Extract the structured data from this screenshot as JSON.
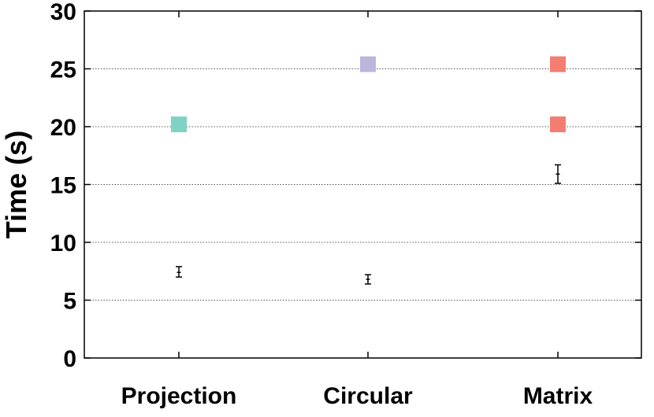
{
  "chart_data": {
    "type": "scatter",
    "title": "",
    "xlabel": "",
    "ylabel": "Time (s)",
    "categories": [
      "Projection",
      "Circular",
      "Matrix"
    ],
    "ylim": [
      0,
      30
    ],
    "yticks": [
      0,
      5,
      10,
      15,
      20,
      25,
      30
    ],
    "grid": {
      "y": true,
      "x": false,
      "style": "dotted"
    },
    "error_points": [
      {
        "category": "Projection",
        "mean": 7.4,
        "low": 7.0,
        "high": 7.9
      },
      {
        "category": "Circular",
        "mean": 6.8,
        "low": 6.4,
        "high": 7.2
      },
      {
        "category": "Matrix",
        "mean": 15.9,
        "low": 15.1,
        "high": 16.7
      }
    ],
    "markers": [
      {
        "category": "Projection",
        "value": 20.2,
        "color": "#7fd3c2"
      },
      {
        "category": "Circular",
        "value": 25.4,
        "color": "#bcb6dc"
      },
      {
        "category": "Matrix",
        "value": 25.4,
        "color": "#f37d71"
      },
      {
        "category": "Matrix",
        "value": 20.2,
        "color": "#f37d71"
      }
    ]
  }
}
